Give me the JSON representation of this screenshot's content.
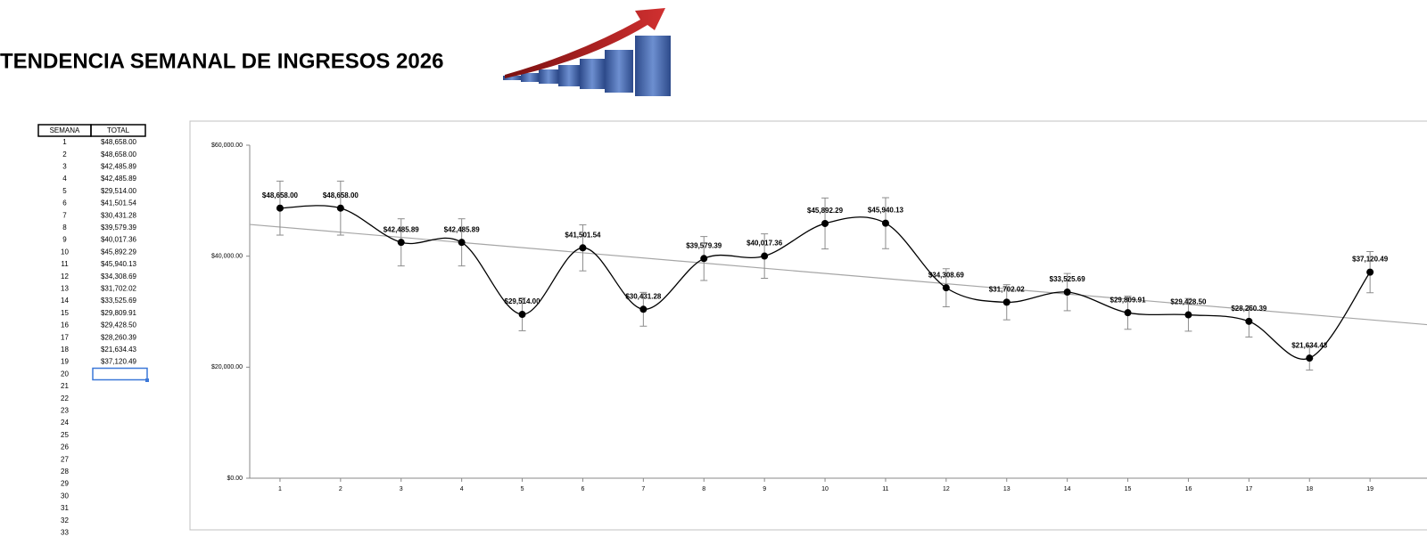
{
  "header": {
    "title": "TENDENCIA SEMANAL DE INGRESOS 2026"
  },
  "table": {
    "columns": [
      "SEMANA",
      "TOTAL"
    ],
    "rows": [
      [
        1,
        "$48,658.00"
      ],
      [
        2,
        "$48,658.00"
      ],
      [
        3,
        "$42,485.89"
      ],
      [
        4,
        "$42,485.89"
      ],
      [
        5,
        "$29,514.00"
      ],
      [
        6,
        "$41,501.54"
      ],
      [
        7,
        "$30,431.28"
      ],
      [
        8,
        "$39,579.39"
      ],
      [
        9,
        "$40,017.36"
      ],
      [
        10,
        "$45,892.29"
      ],
      [
        11,
        "$45,940.13"
      ],
      [
        12,
        "$34,308.69"
      ],
      [
        13,
        "$31,702.02"
      ],
      [
        14,
        "$33,525.69"
      ],
      [
        15,
        "$29,809.91"
      ],
      [
        16,
        "$29,428.50"
      ],
      [
        17,
        "$28,260.39"
      ],
      [
        18,
        "$21,634.43"
      ],
      [
        19,
        "$37,120.49"
      ]
    ],
    "empty_weeks": [
      20,
      21,
      22,
      23,
      24,
      25,
      26,
      27,
      28,
      29,
      30,
      31,
      32,
      33
    ]
  },
  "chart_data": {
    "type": "line",
    "smooth": true,
    "categories": [
      1,
      2,
      3,
      4,
      5,
      6,
      7,
      8,
      9,
      10,
      11,
      12,
      13,
      14,
      15,
      16,
      17,
      18,
      19
    ],
    "values": [
      48658.0,
      48658.0,
      42485.89,
      42485.89,
      29514.0,
      41501.54,
      30431.28,
      39579.39,
      40017.36,
      45892.29,
      45940.13,
      34308.69,
      31702.02,
      33525.69,
      29809.91,
      29428.5,
      28260.39,
      21634.43,
      37120.49
    ],
    "value_labels": [
      "$48,658.00",
      "$48,658.00",
      "$42,485.89",
      "$42,485.89",
      "$29,514.00",
      "$41,501.54",
      "$30,431.28",
      "$39,579.39",
      "$40,017.36",
      "$45,892.29",
      "$45,940.13",
      "$34,308.69",
      "$31,702.02",
      "$33,525.69",
      "$29,809.91",
      "$29,428.50",
      "$28,260.39",
      "$21,634.43",
      "$37,120.49"
    ],
    "color": "#000000",
    "trendline": "linear",
    "trendline_color": "#a6a6a6",
    "error_bar_percent": 10,
    "error_bar_color": "#8c8c8c",
    "ylim": [
      0,
      60000
    ],
    "yticks": [
      {
        "value": 0,
        "label": "$0.00"
      },
      {
        "value": 20000,
        "label": "$20,000.00"
      },
      {
        "value": 40000,
        "label": "$40,000.00"
      },
      {
        "value": 60000,
        "label": "$60,000.00"
      }
    ]
  }
}
